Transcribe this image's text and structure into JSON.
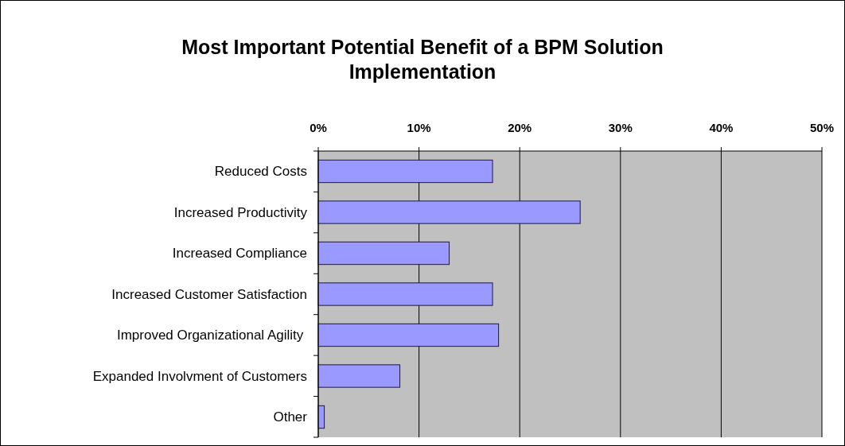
{
  "chart_data": {
    "type": "bar",
    "orientation": "horizontal",
    "title": "Most Important Potential Benefit of a BPM Solution Implementation",
    "categories": [
      "Reduced Costs",
      "Increased Productivity",
      "Increased Compliance",
      "Increased Customer Satisfaction",
      "Improved Organizational Agility ",
      "Expanded Involvment of Customers",
      "Other"
    ],
    "values": [
      17.3,
      26,
      13,
      17.3,
      17.9,
      8.1,
      0.6
    ],
    "color": "#9999ff",
    "xlim": [
      0,
      50
    ],
    "xticks": [
      {
        "value": 0,
        "label": "0%"
      },
      {
        "value": 10,
        "label": "10%"
      },
      {
        "value": 20,
        "label": "20%"
      },
      {
        "value": 30,
        "label": "30%"
      },
      {
        "value": 40,
        "label": "40%"
      },
      {
        "value": 50,
        "label": "50%"
      }
    ],
    "grid": "x"
  }
}
